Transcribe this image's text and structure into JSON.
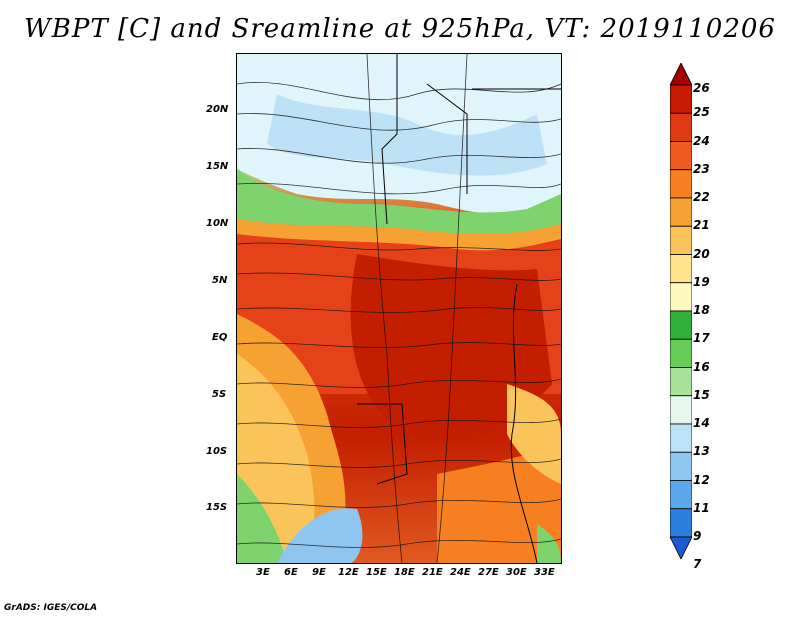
{
  "title": "WBPT [C] and Sreamline at 925hPa, VT: 2019110206",
  "credit": "GrADS: IGES/COLA",
  "lat_labels": [
    "20N",
    "15N",
    "10N",
    "5N",
    "EQ",
    "5S",
    "10S",
    "15S"
  ],
  "lon_labels": [
    "3E",
    "6E",
    "9E",
    "12E",
    "15E",
    "18E",
    "21E",
    "24E",
    "27E",
    "30E",
    "33E"
  ],
  "colorbar": {
    "labels": [
      "26",
      "25",
      "24",
      "23",
      "22",
      "21",
      "20",
      "19",
      "18",
      "17",
      "16",
      "15",
      "14",
      "13",
      "12",
      "11",
      "9",
      "7"
    ],
    "colors": [
      "#a50000",
      "#c81a00",
      "#e03a12",
      "#ef5a1e",
      "#f67f1f",
      "#f6a233",
      "#fbc45a",
      "#fde389",
      "#fff8bf",
      "#2fb13a",
      "#66cc55",
      "#a8e29a",
      "#e6f8ee",
      "#bde3f7",
      "#8ec6f0",
      "#5aa7e9",
      "#2d7fdf",
      "#1c5ad0"
    ]
  }
}
